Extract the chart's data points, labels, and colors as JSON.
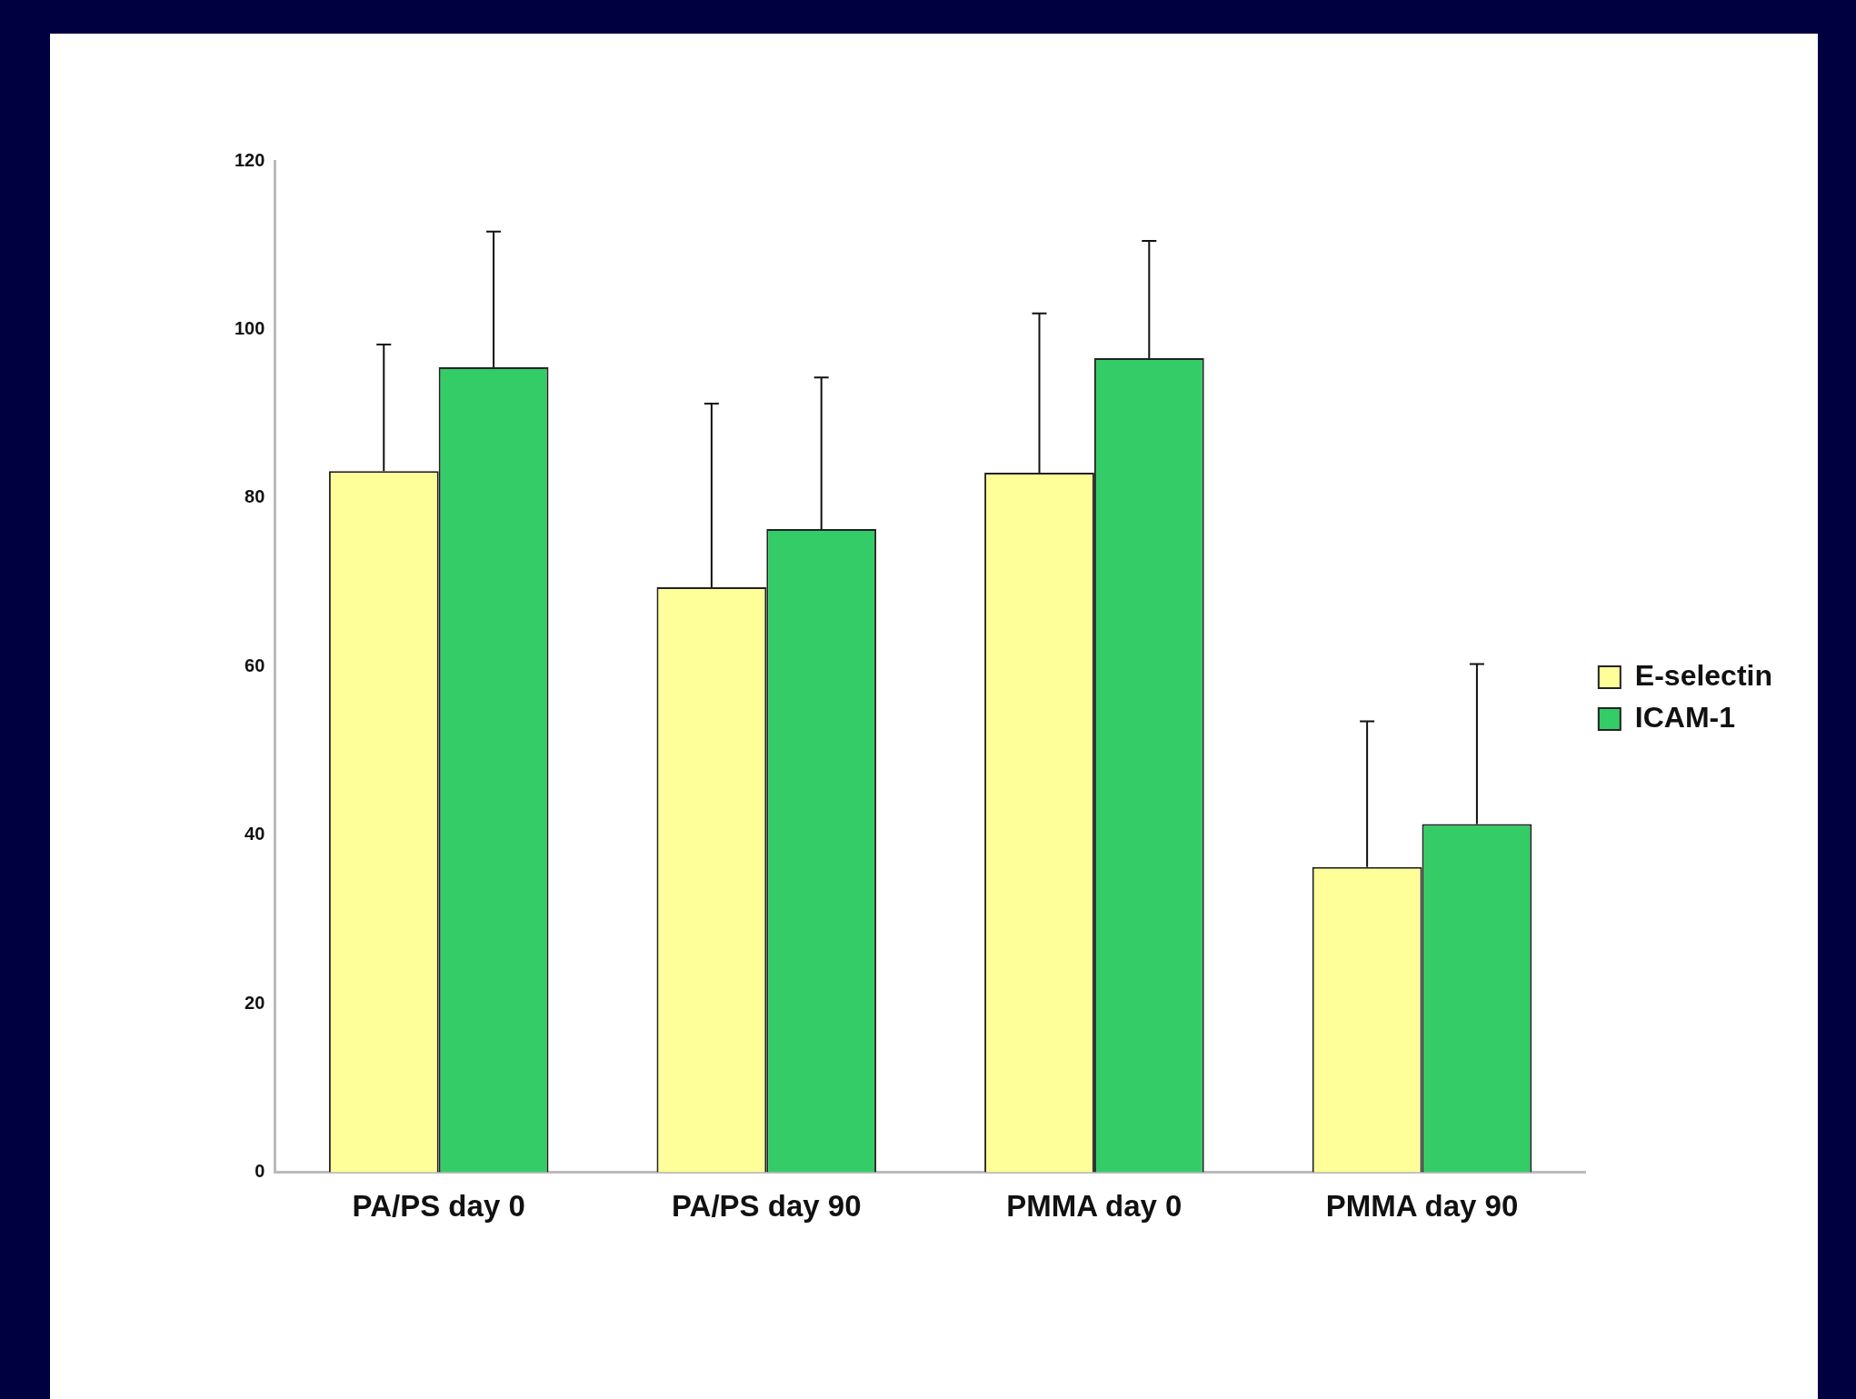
{
  "chart_data": {
    "type": "bar",
    "categories": [
      "PA/PS day 0",
      "PA/PS day 90",
      "PMMA day 0",
      "PMMA day 90"
    ],
    "series": [
      {
        "name": "E-selectin",
        "color": "#ffff99",
        "values": [
          83.2,
          69.4,
          83.0,
          36.2
        ],
        "errors": [
          [
            83.2,
            98.2
          ],
          [
            69.4,
            91.2
          ],
          [
            83.0,
            101.9
          ],
          [
            36.2,
            53.5
          ]
        ]
      },
      {
        "name": "ICAM-1",
        "color": "#33cc66",
        "values": [
          95.5,
          76.3,
          96.6,
          41.3
        ],
        "errors": [
          [
            95.5,
            111.6
          ],
          [
            76.3,
            94.3
          ],
          [
            96.6,
            110.5
          ],
          [
            41.3,
            60.3
          ]
        ]
      }
    ],
    "ylim": [
      0,
      120
    ],
    "yticks": [
      0,
      20,
      40,
      60,
      80,
      100,
      120
    ],
    "grid": false,
    "legend": "right"
  }
}
